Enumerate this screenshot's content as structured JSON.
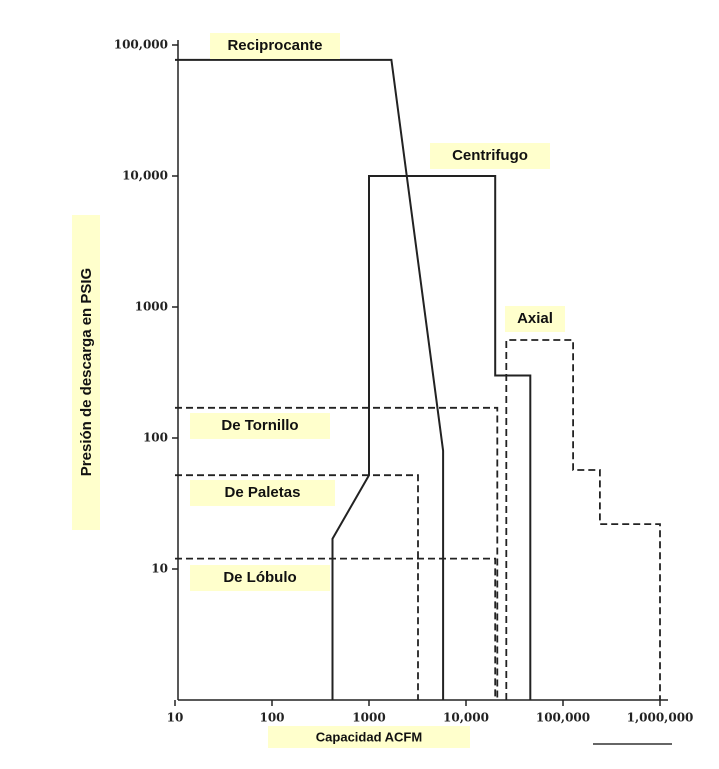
{
  "chart_data": {
    "type": "line",
    "x_label": "Capacidad ACFM",
    "y_label": "Presión de descarga en PSIG",
    "xscale": "log",
    "yscale": "log",
    "xlim": [
      10,
      1000000
    ],
    "ylim": [
      1,
      100000
    ],
    "xticks": [
      10,
      100,
      1000,
      {
        "value": 10000,
        "label": "10,000"
      },
      {
        "value": 100000,
        "label": "100,000"
      },
      {
        "value": 1000000,
        "label": "1,000,000"
      }
    ],
    "yticks": [
      10,
      100,
      1000,
      {
        "value": 10000,
        "label": "10,000"
      },
      {
        "value": 100000,
        "label": "100,000"
      }
    ],
    "label_background": "#ffffcc",
    "series": [
      {
        "name": "Reciprocante",
        "color": "#222222",
        "dashed": false,
        "x": [
          10,
          1700,
          5800,
          5800
        ],
        "values": [
          77000,
          77000,
          80,
          1
        ]
      },
      {
        "name": "Centrifugo",
        "color": "#222222",
        "dashed": false,
        "x": [
          420,
          420,
          1000,
          1000,
          20000,
          20000,
          46000,
          46000
        ],
        "values": [
          1,
          17,
          52,
          10000,
          10000,
          300,
          300,
          1
        ]
      },
      {
        "name": "Axial",
        "color": "#222222",
        "dashed": true,
        "x": [
          26000,
          26000,
          127000,
          127000,
          240000,
          240000,
          1000000,
          1000000
        ],
        "values": [
          1,
          560,
          560,
          57,
          57,
          22,
          22,
          1
        ]
      },
      {
        "name": "De Tornillo",
        "color": "#222222",
        "dashed": true,
        "x": [
          10,
          21000,
          21000
        ],
        "values": [
          170,
          170,
          1
        ]
      },
      {
        "name": "De Paletas",
        "color": "#222222",
        "dashed": true,
        "x": [
          10,
          3200,
          3200
        ],
        "values": [
          52,
          52,
          1
        ]
      },
      {
        "name": "De Lóbulo",
        "color": "#222222",
        "dashed": true,
        "x": [
          10,
          20000,
          20000
        ],
        "values": [
          12,
          12,
          1
        ]
      }
    ]
  }
}
